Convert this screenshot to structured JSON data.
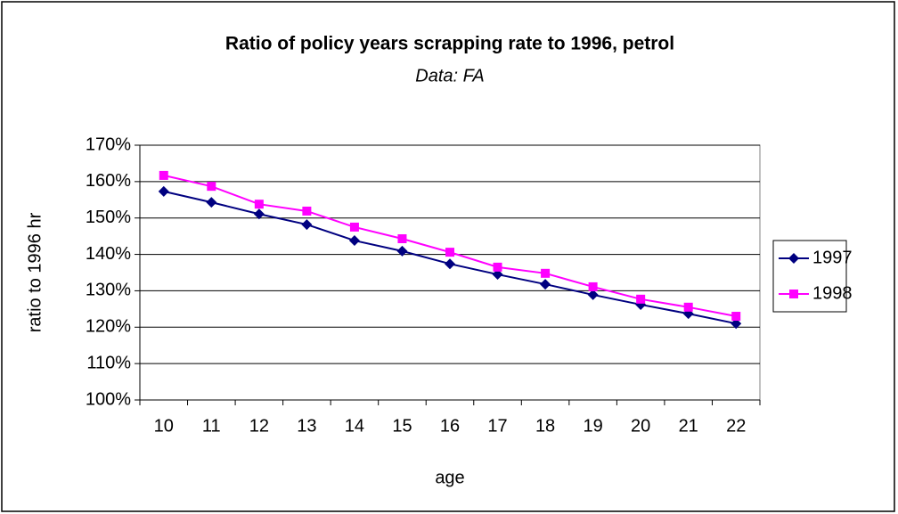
{
  "chart_data": {
    "type": "line",
    "title": "Ratio of policy years scrapping rate to 1996, petrol",
    "subtitle": "Data: FA",
    "y_label": "ratio to 1996 hr",
    "x_label": "age",
    "categories": [
      "10",
      "11",
      "12",
      "13",
      "14",
      "15",
      "16",
      "17",
      "18",
      "19",
      "20",
      "21",
      "22"
    ],
    "series": [
      {
        "name": "1997",
        "color": "#000080",
        "marker": "diamond",
        "values": [
          157.3,
          154.3,
          151.1,
          148.2,
          143.8,
          140.9,
          137.4,
          134.5,
          131.8,
          128.9,
          126.2,
          123.7,
          121.0
        ]
      },
      {
        "name": "1998",
        "color": "#ff00ff",
        "marker": "square",
        "values": [
          161.7,
          158.7,
          153.8,
          151.9,
          147.5,
          144.3,
          140.6,
          136.5,
          134.8,
          131.1,
          127.7,
          125.5,
          123.0
        ]
      }
    ],
    "ylim": [
      100,
      170
    ],
    "yticks": [
      {
        "value": 100,
        "label": "100%"
      },
      {
        "value": 110,
        "label": "110%"
      },
      {
        "value": 120,
        "label": "120%"
      },
      {
        "value": 130,
        "label": "130%"
      },
      {
        "value": 140,
        "label": "140%"
      },
      {
        "value": 150,
        "label": "150%"
      },
      {
        "value": 160,
        "label": "160%"
      },
      {
        "value": 170,
        "label": "170%"
      }
    ],
    "grid": true,
    "legend": "right"
  }
}
